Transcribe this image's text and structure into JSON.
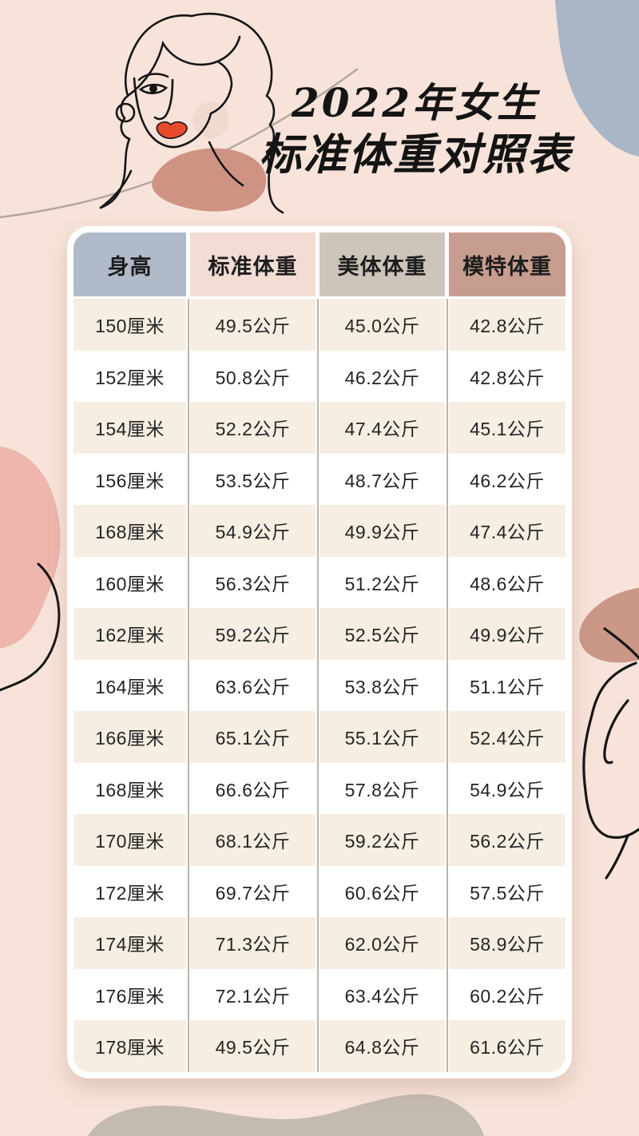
{
  "page": {
    "background_color": "#f7e3d9",
    "title_line1": "2022年女生",
    "title_line2": "标准体重对照表"
  },
  "chart_data": {
    "type": "table",
    "title": "2022年女生标准体重对照表",
    "columns": [
      "身高",
      "标准体重",
      "美体体重",
      "模特体重"
    ],
    "header_colors": [
      "#b0bac9",
      "#f2dcd4",
      "#cdc5ba",
      "#c79d90"
    ],
    "rows": [
      [
        "150厘米",
        "49.5公斤",
        "45.0公斤",
        "42.8公斤"
      ],
      [
        "152厘米",
        "50.8公斤",
        "46.2公斤",
        "42.8公斤"
      ],
      [
        "154厘米",
        "52.2公斤",
        "47.4公斤",
        "45.1公斤"
      ],
      [
        "156厘米",
        "53.5公斤",
        "48.7公斤",
        "46.2公斤"
      ],
      [
        "168厘米",
        "54.9公斤",
        "49.9公斤",
        "47.4公斤"
      ],
      [
        "160厘米",
        "56.3公斤",
        "51.2公斤",
        "48.6公斤"
      ],
      [
        "162厘米",
        "59.2公斤",
        "52.5公斤",
        "49.9公斤"
      ],
      [
        "164厘米",
        "63.6公斤",
        "53.8公斤",
        "51.1公斤"
      ],
      [
        "166厘米",
        "65.1公斤",
        "55.1公斤",
        "52.4公斤"
      ],
      [
        "168厘米",
        "66.6公斤",
        "57.8公斤",
        "54.9公斤"
      ],
      [
        "170厘米",
        "68.1公斤",
        "59.2公斤",
        "56.2公斤"
      ],
      [
        "172厘米",
        "69.7公斤",
        "60.6公斤",
        "57.5公斤"
      ],
      [
        "174厘米",
        "71.3公斤",
        "62.0公斤",
        "58.9公斤"
      ],
      [
        "176厘米",
        "72.1公斤",
        "63.4公斤",
        "60.2公斤"
      ],
      [
        "178厘米",
        "49.5公斤",
        "64.8公斤",
        "61.6公斤"
      ]
    ],
    "row_stripe_colors": {
      "odd": "#f6eee2",
      "even": "#ffffff"
    },
    "layout_hints": {
      "grid": "vertical separators only",
      "legend": "none"
    }
  },
  "decorations": {
    "blob_top_right_color": "#aab5c6",
    "blob_left_color": "#eeb6ac",
    "blob_right_color": "#cb9787",
    "blob_bottom_color": "#c4bbb0",
    "face_blob_color": "#cf9384",
    "lips_color": "#e6492b",
    "line_art_color": "#151515",
    "thin_line_color": "#b3a79c",
    "icons": [
      "woman-face-line-art-icon",
      "organic-blob-shapes"
    ]
  }
}
